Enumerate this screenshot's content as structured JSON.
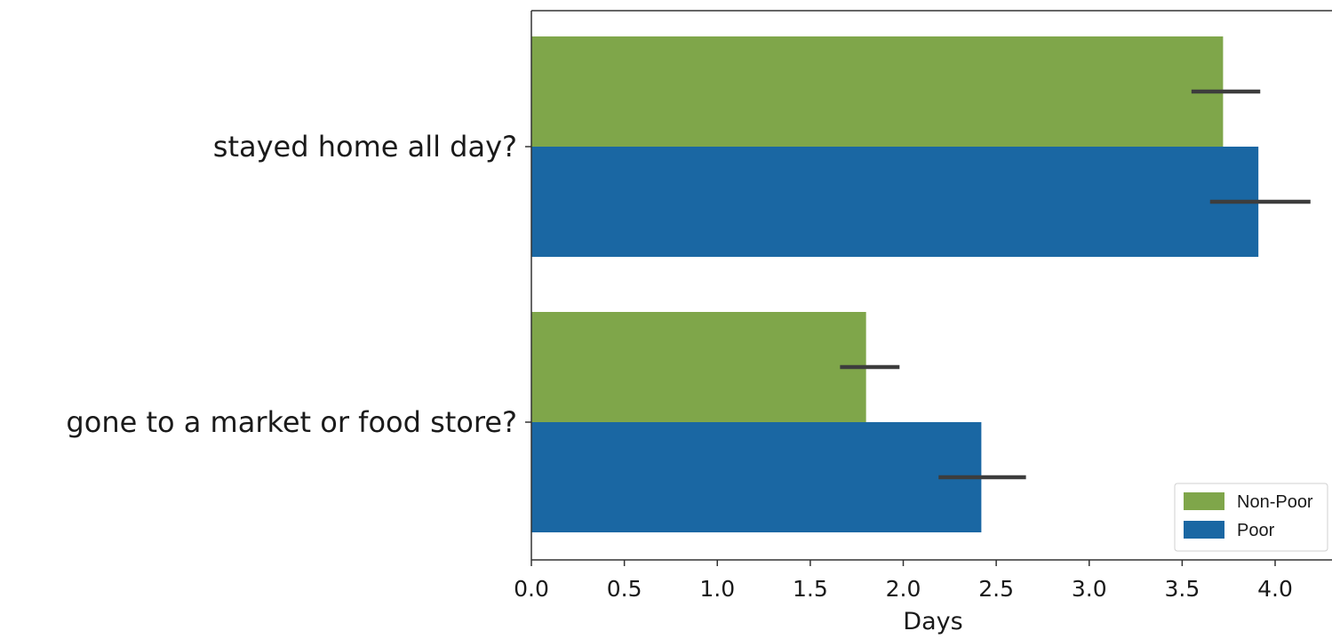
{
  "chart_data": {
    "type": "bar",
    "orientation": "horizontal",
    "title": "",
    "xlabel": "Days",
    "ylabel": "",
    "xlim": [
      0,
      4.25
    ],
    "x_ticks": [
      0.0,
      0.5,
      1.0,
      1.5,
      2.0,
      2.5,
      3.0,
      3.5,
      4.0
    ],
    "x_tick_labels": [
      "0.0",
      "0.5",
      "1.0",
      "1.5",
      "2.0",
      "2.5",
      "3.0",
      "3.5",
      "4.0"
    ],
    "grid": false,
    "categories": [
      "stayed home all day?",
      "gone to a market or food store?"
    ],
    "series": [
      {
        "name": "Non-Poor",
        "color": "#7fa64a",
        "values": [
          3.72,
          1.8
        ],
        "error_low": [
          3.55,
          1.66
        ],
        "error_high": [
          3.92,
          1.98
        ]
      },
      {
        "name": "Poor",
        "color": "#1a67a3",
        "values": [
          3.91,
          2.42
        ],
        "error_low": [
          3.65,
          2.19
        ],
        "error_high": [
          4.19,
          2.66
        ]
      }
    ],
    "legend_position": "bottom-right"
  }
}
